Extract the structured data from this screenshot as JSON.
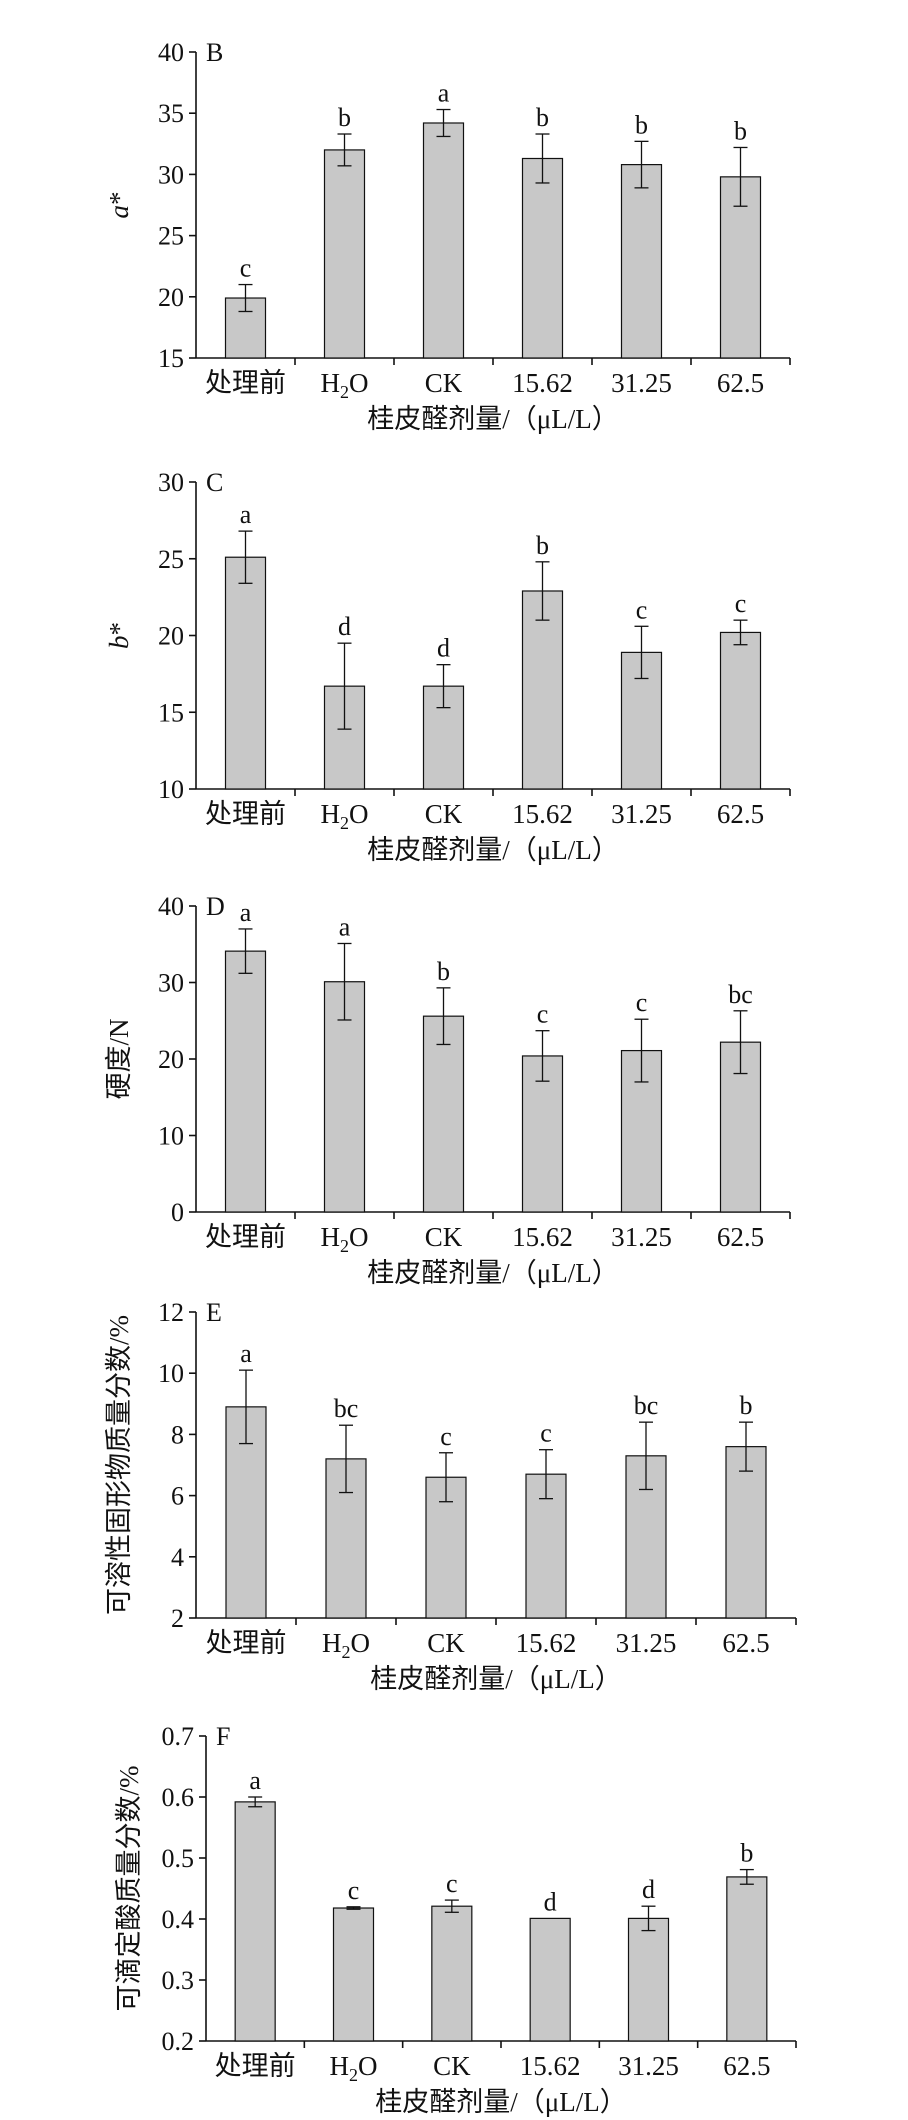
{
  "chart_data": [
    {
      "type": "bar",
      "panel": "B",
      "ylabel": "a*",
      "xlabel": "桂皮醛剂量/（μL/L）",
      "categories": [
        "处理前",
        "H2O",
        "CK",
        "15.62",
        "31.25",
        "62.5"
      ],
      "values": [
        19.9,
        32.0,
        34.2,
        31.3,
        30.8,
        29.8
      ],
      "errors": [
        1.1,
        1.3,
        1.1,
        2.0,
        1.9,
        2.4
      ],
      "letters": [
        "c",
        "b",
        "a",
        "b",
        "b",
        "b"
      ],
      "ylim": [
        15,
        40
      ],
      "yticks": [
        15,
        20,
        25,
        30,
        35,
        40
      ]
    },
    {
      "type": "bar",
      "panel": "C",
      "ylabel": "b*",
      "xlabel": "桂皮醛剂量/（μL/L）",
      "categories": [
        "处理前",
        "H2O",
        "CK",
        "15.62",
        "31.25",
        "62.5"
      ],
      "values": [
        25.1,
        16.7,
        16.7,
        22.9,
        18.9,
        20.2
      ],
      "errors": [
        1.7,
        2.8,
        1.4,
        1.9,
        1.7,
        0.8
      ],
      "letters": [
        "a",
        "d",
        "d",
        "b",
        "c",
        "c"
      ],
      "ylim": [
        10,
        30
      ],
      "yticks": [
        10,
        15,
        20,
        25,
        30
      ]
    },
    {
      "type": "bar",
      "panel": "D",
      "ylabel": "硬度/N",
      "xlabel": "桂皮醛剂量/（μL/L）",
      "categories": [
        "处理前",
        "H2O",
        "CK",
        "15.62",
        "31.25",
        "62.5"
      ],
      "values": [
        34.1,
        30.1,
        25.6,
        20.4,
        21.1,
        22.2
      ],
      "errors": [
        2.9,
        5.0,
        3.7,
        3.3,
        4.1,
        4.1
      ],
      "letters": [
        "a",
        "a",
        "b",
        "c",
        "c",
        "bc"
      ],
      "ylim": [
        0,
        40
      ],
      "yticks": [
        0,
        10,
        20,
        30,
        40
      ]
    },
    {
      "type": "bar",
      "panel": "E",
      "ylabel": "可溶性固形物质量分数/%",
      "xlabel": "桂皮醛剂量/（μL/L）",
      "categories": [
        "处理前",
        "H2O",
        "CK",
        "15.62",
        "31.25",
        "62.5"
      ],
      "values": [
        8.9,
        7.2,
        6.6,
        6.7,
        7.3,
        7.6
      ],
      "errors": [
        1.2,
        1.1,
        0.8,
        0.8,
        1.1,
        0.8
      ],
      "letters": [
        "a",
        "bc",
        "c",
        "c",
        "bc",
        "b"
      ],
      "ylim": [
        2,
        12
      ],
      "yticks": [
        2,
        4,
        6,
        8,
        10,
        12
      ]
    },
    {
      "type": "bar",
      "panel": "F",
      "ylabel": "可滴定酸质量分数/%",
      "xlabel": "桂皮醛剂量/（μL/L）",
      "categories": [
        "处理前",
        "H2O",
        "CK",
        "15.62",
        "31.25",
        "62.5"
      ],
      "values": [
        0.592,
        0.418,
        0.421,
        0.401,
        0.401,
        0.469
      ],
      "errors": [
        0.008,
        0.002,
        0.01,
        0.0,
        0.02,
        0.012
      ],
      "letters": [
        "a",
        "c",
        "c",
        "d",
        "d",
        "b"
      ],
      "ylim": [
        0.2,
        0.7
      ],
      "yticks": [
        0.2,
        0.3,
        0.4,
        0.5,
        0.6,
        0.7
      ]
    }
  ],
  "style": {
    "bar_color": "#c8c8c8",
    "axis_color": "#111111"
  }
}
